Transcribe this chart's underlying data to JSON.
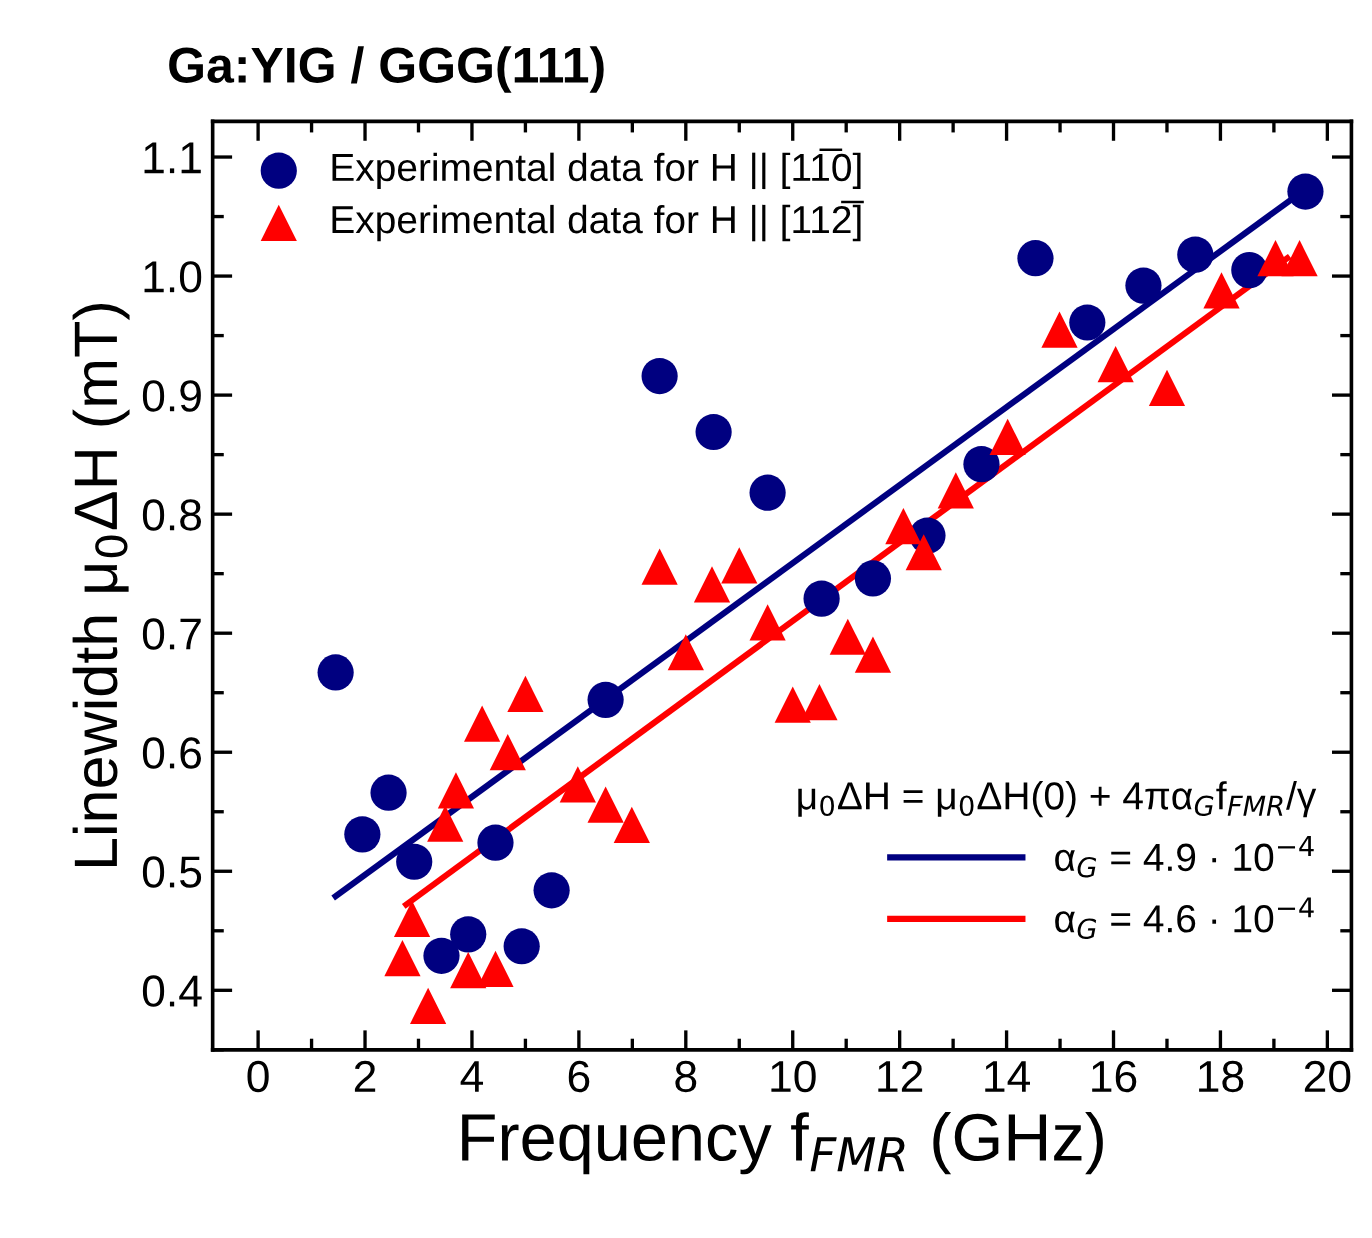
{
  "chart_data": {
    "type": "scatter",
    "title": "Ga:YIG / GGG(111)",
    "xlabel": "Frequency f$_{FMR}$ (GHz)",
    "ylabel": "Linewidth μ$_{0}$ΔH (mT)",
    "legend_title": "μ$_{0}$ΔH = μ$_{0}$ΔH(0) + 4πα$_{G}$f$_{FMR}$/γ",
    "xlim": [
      -0.85,
      20.45
    ],
    "ylim": [
      0.35,
      1.13
    ],
    "xticks": [
      0,
      2,
      4,
      6,
      8,
      10,
      12,
      14,
      16,
      18,
      20
    ],
    "yticks": [
      0.4,
      0.5,
      0.6,
      0.7,
      0.8,
      0.9,
      {
        "value": 1.0,
        "label": "1.0"
      },
      1.1
    ],
    "legend": "top left",
    "grid": false,
    "series": [
      {
        "name": "Experimental data for H || [11̅0]",
        "marker": "circle",
        "color": "#000080",
        "x": [
          1.45,
          1.95,
          2.44,
          2.92,
          3.43,
          3.93,
          4.44,
          4.93,
          5.49,
          6.5,
          7.51,
          8.52,
          9.53,
          10.54,
          11.5,
          12.52,
          13.53,
          14.54,
          15.51,
          16.56,
          17.53,
          18.54,
          19.59
        ],
        "values": [
          0.667,
          0.531,
          0.566,
          0.508,
          0.429,
          0.447,
          0.524,
          0.437,
          0.484,
          0.644,
          0.916,
          0.869,
          0.818,
          0.729,
          0.746,
          0.782,
          0.842,
          1.015,
          0.961,
          0.992,
          1.018,
          1.005,
          1.071
        ]
      },
      {
        "name": "Experimental data for H || [112̅]",
        "marker": "triangle",
        "color": "#ff0000",
        "x": [
          2.88,
          2.7,
          3.18,
          3.5,
          3.7,
          3.93,
          4.19,
          4.44,
          4.67,
          5.0,
          5.98,
          6.5,
          6.99,
          7.51,
          8.0,
          8.49,
          9.0,
          9.53,
          10.0,
          10.5,
          11.03,
          11.5,
          12.07,
          12.45,
          13.05,
          14.02,
          14.99,
          16.04,
          17.0,
          18.02,
          19.03,
          19.48
        ],
        "values": [
          0.46,
          0.427,
          0.387,
          0.54,
          0.568,
          0.417,
          0.624,
          0.418,
          0.6,
          0.649,
          0.573,
          0.556,
          0.539,
          0.756,
          0.684,
          0.741,
          0.757,
          0.709,
          0.64,
          0.642,
          0.697,
          0.682,
          0.79,
          0.768,
          0.82,
          0.865,
          0.955,
          0.926,
          0.906,
          0.988,
          1.015,
          1.015
        ]
      },
      {
        "name": "α$_{G}$ = 4.9 · 10$^{−4}$",
        "type": "line",
        "line_style": "solid",
        "color": "#000080",
        "x": [
          1.45,
          19.5
        ],
        "values": [
          0.479,
          1.07
        ]
      },
      {
        "name": "α$_{G}$ = 4.6 · 10$^{−4}$",
        "type": "line",
        "line_style": "solid",
        "color": "#ff0000",
        "x": [
          2.77,
          19.25
        ],
        "values": [
          0.472,
          1.015
        ]
      }
    ]
  }
}
